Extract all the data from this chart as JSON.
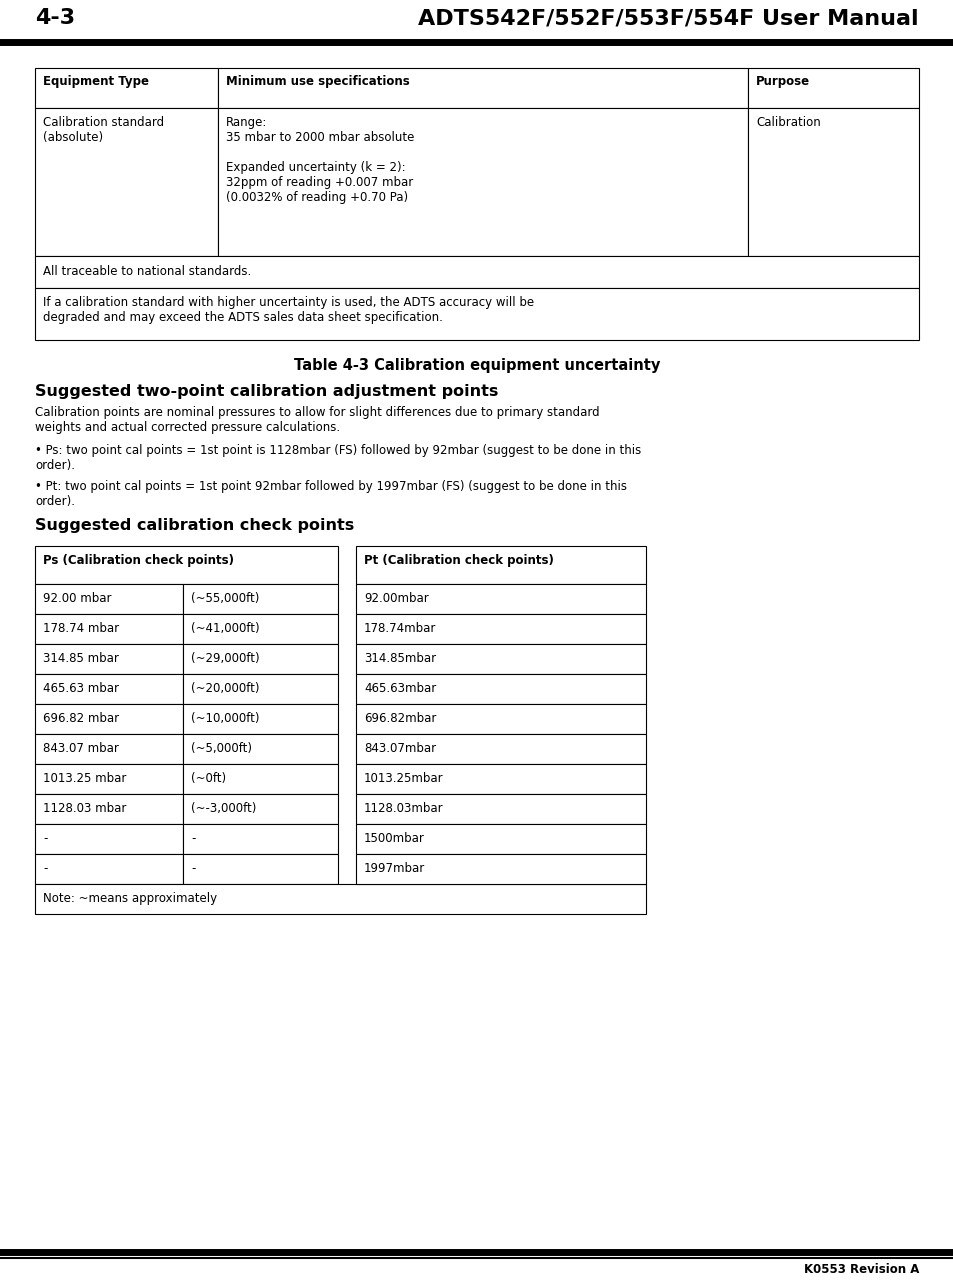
{
  "page_header_left": "4-3",
  "page_header_right": "ADTS542F/552F/553F/554F User Manual",
  "page_footer_right": "K0553 Revision A",
  "table1_title": "Table 4-3 Calibration equipment uncertainty",
  "section1_title": "Suggested two-point calibration adjustment points",
  "section1_body": "Calibration points are nominal pressures to allow for slight differences due to primary standard\nweights and actual corrected pressure calculations.",
  "bullet1": "• Ps: two point cal points = 1st point is 1128mbar (FS) followed by 92mbar (suggest to be done in this\norder).",
  "bullet2": "• Pt: two point cal points = 1st point 92mbar followed by 1997mbar (FS) (suggest to be done in this\norder).",
  "section2_title": "Suggested calibration check points",
  "table2_header_ps": "Ps (Calibration check points)",
  "table2_header_pt": "Pt (Calibration check points)",
  "table2_ps_col1": [
    "92.00 mbar",
    "178.74 mbar",
    "314.85 mbar",
    "465.63 mbar",
    "696.82 mbar",
    "843.07 mbar",
    "1013.25 mbar",
    "1128.03 mbar",
    "-",
    "-"
  ],
  "table2_ps_col2": [
    "(~55,000ft)",
    "(~41,000ft)",
    "(~29,000ft)",
    "(~20,000ft)",
    "(~10,000ft)",
    "(~5,000ft)",
    "(~0ft)",
    "(~-3,000ft)",
    "-",
    "-"
  ],
  "table2_pt_col1": [
    "92.00mbar",
    "178.74mbar",
    "314.85mbar",
    "465.63mbar",
    "696.82mbar",
    "843.07mbar",
    "1013.25mbar",
    "1128.03mbar",
    "1500mbar",
    "1997mbar"
  ],
  "table2_note": "Note: ~means approximately",
  "bg_color": "#ffffff",
  "header_font_size": 8.5,
  "body_font_size": 8.5,
  "title_font_size": 10.5,
  "section_title_font_size": 11.5,
  "page_header_font_size": 16
}
